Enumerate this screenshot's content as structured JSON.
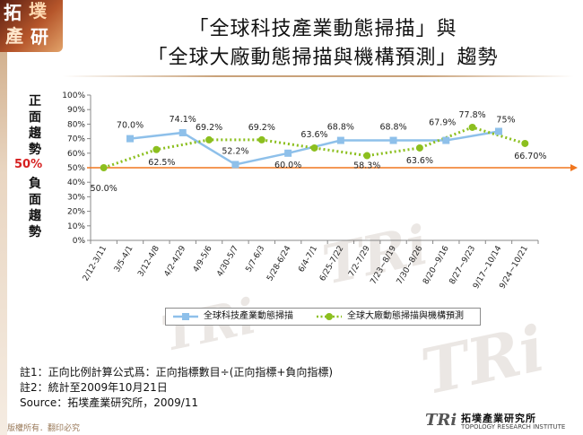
{
  "brand": {
    "logo_chars": [
      "拓",
      "墣",
      "產",
      "研"
    ],
    "copyright": "版權所有．翻印必究",
    "footer_logo_text": "TRi",
    "footer_name": "拓墣產業研究所",
    "footer_subname": "TOPOLOGY RESEARCH INSTITUTE",
    "watermark_text": "TRi"
  },
  "header": {
    "title_line1": "「全球科技產業動態掃描」與",
    "title_line2": "「全球大廠動態掃描與機構預測」趨勢"
  },
  "side_labels": {
    "positive": "正面趨勢",
    "negative": "負面趨勢",
    "midline": "50%"
  },
  "colors": {
    "series_a": "#8ec0ea",
    "series_b": "#8cbf1f",
    "midline": "#f0761e",
    "axis": "#888888"
  },
  "chart_data": {
    "type": "line",
    "categories": [
      "2/12-3/11",
      "3/5-4/1",
      "3/12-4/8",
      "4/2-4/29",
      "4/9-5/6",
      "4/30-5/7",
      "5/7-6/3",
      "5/28-6/24",
      "6/4-7/1",
      "6/25-7/22",
      "7/2-7/29",
      "7/23~8/19",
      "7/30~8/26",
      "8/20~9/16",
      "8/27~9/23",
      "9/17~10/14",
      "9/24~10/21"
    ],
    "y_ticks": [
      "0%",
      "10%",
      "20%",
      "30%",
      "40%",
      "50%",
      "60%",
      "70%",
      "80%",
      "90%",
      "100%"
    ],
    "ylim": [
      0,
      100
    ],
    "reference_line": 50,
    "series": [
      {
        "name": "全球科技產業動態掃描",
        "values": [
          null,
          70.0,
          null,
          74.1,
          null,
          52.2,
          null,
          60.0,
          null,
          68.8,
          null,
          68.8,
          null,
          68.8,
          null,
          75.0,
          null
        ],
        "labels": [
          null,
          "70.0%",
          null,
          "74.1%",
          null,
          "52.2%",
          null,
          "60.0%",
          null,
          "68.8%",
          null,
          "68.8%",
          null,
          null,
          null,
          "75%",
          null
        ],
        "marker": "square",
        "style": "solid"
      },
      {
        "name": "全球大廠動態掃描與機構預測",
        "values": [
          50.0,
          null,
          62.5,
          null,
          69.2,
          null,
          69.2,
          null,
          63.6,
          null,
          58.3,
          null,
          63.6,
          null,
          77.8,
          null,
          66.7
        ],
        "labels": [
          "50.0%",
          null,
          "62.5%",
          null,
          "69.2%",
          null,
          "69.2%",
          null,
          "63.6%",
          null,
          "58.3%",
          null,
          "63.6%",
          "67.9%",
          "77.8%",
          null,
          "66.70%"
        ],
        "marker": "circle",
        "style": "dotted"
      }
    ],
    "legend_position": "bottom",
    "grid": false
  },
  "notes": {
    "note1": "註1：正向比例計算公式爲：正向指標數目÷(正向指標+負向指標)",
    "note2": "註2：統計至2009年10月21日",
    "source": "Source：拓墣產業研究所，2009/11"
  }
}
